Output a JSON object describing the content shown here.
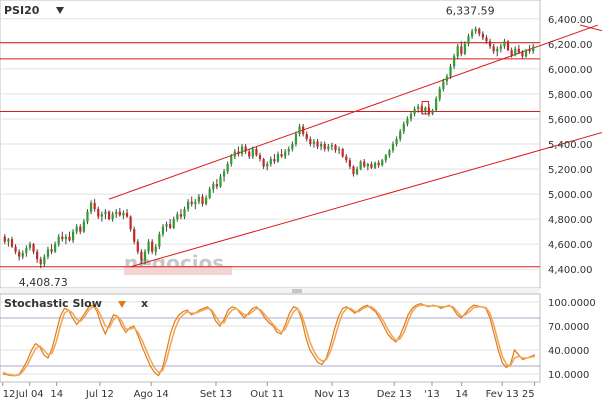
{
  "colors": {
    "up_candle": "#2e9e2e",
    "down_candle": "#c62828",
    "wick": "#444444",
    "trendline": "#d91c1c",
    "stoch_k": "#e07a18",
    "stoch_d": "#f2a85a",
    "grid": "#e2e2e2",
    "hline_stoch": "#a8a8c8"
  },
  "header": {
    "symbol": "PSI20",
    "symbol_dropdown_icon": "triangle-down-icon",
    "indicator": "Stochastic Slow",
    "indicator_dropdown_icon": "triangle-down-icon",
    "indicator_close": "x"
  },
  "watermark": {
    "text": "negocios",
    "subtext": "negocios"
  },
  "chart_data": [
    {
      "type": "candlestick",
      "title": "PSI20",
      "ylim": [
        4250,
        6550
      ],
      "y_ticks": [
        "6,400.00",
        "6,200.00",
        "6,000.00",
        "5,800.00",
        "5,600.00",
        "5,400.00",
        "5,200.00",
        "5,000.00",
        "4,800.00",
        "4,600.00",
        "4,400.00"
      ],
      "x_ticks": [
        "12",
        "Jul 04",
        "14",
        "Jul 12",
        "Ago 14",
        "Set 13",
        "Out 11",
        "Nov 13",
        "Dez 13",
        "'13",
        "14",
        "Fev 13",
        "25"
      ],
      "annotations": {
        "high_label": "6,337.59",
        "high_value": 6337.59,
        "low_label": "4,408.73",
        "low_value": 4408.73
      },
      "horizontal_lines": [
        6210,
        6080,
        5660,
        4420
      ],
      "trend_lines": [
        {
          "from": [
            29,
            4960
          ],
          "to": [
            165,
            6350
          ]
        },
        {
          "from": [
            35,
            4420
          ],
          "to": [
            199,
            5760
          ]
        },
        {
          "from": [
            160,
            6350
          ],
          "to": [
            199,
            6060
          ]
        },
        {
          "from": [
            172,
            6060
          ],
          "to": [
            199,
            6020
          ]
        }
      ],
      "candles": [
        [
          4660,
          4680,
          4600,
          4620
        ],
        [
          4620,
          4650,
          4580,
          4640
        ],
        [
          4640,
          4660,
          4570,
          4580
        ],
        [
          4580,
          4600,
          4520,
          4540
        ],
        [
          4540,
          4560,
          4470,
          4500
        ],
        [
          4500,
          4550,
          4480,
          4530
        ],
        [
          4530,
          4590,
          4500,
          4570
        ],
        [
          4570,
          4620,
          4550,
          4600
        ],
        [
          4600,
          4610,
          4520,
          4540
        ],
        [
          4540,
          4560,
          4450,
          4480
        ],
        [
          4480,
          4500,
          4409,
          4440
        ],
        [
          4440,
          4520,
          4420,
          4500
        ],
        [
          4500,
          4580,
          4480,
          4560
        ],
        [
          4560,
          4600,
          4520,
          4540
        ],
        [
          4540,
          4620,
          4530,
          4600
        ],
        [
          4600,
          4680,
          4580,
          4660
        ],
        [
          4660,
          4700,
          4620,
          4640
        ],
        [
          4640,
          4680,
          4600,
          4660
        ],
        [
          4660,
          4700,
          4620,
          4630
        ],
        [
          4630,
          4720,
          4610,
          4700
        ],
        [
          4700,
          4760,
          4680,
          4740
        ],
        [
          4740,
          4760,
          4680,
          4700
        ],
        [
          4700,
          4800,
          4690,
          4780
        ],
        [
          4780,
          4880,
          4760,
          4860
        ],
        [
          4860,
          4950,
          4840,
          4930
        ],
        [
          4930,
          4960,
          4860,
          4880
        ],
        [
          4880,
          4900,
          4800,
          4820
        ],
        [
          4820,
          4860,
          4780,
          4840
        ],
        [
          4840,
          4880,
          4800,
          4860
        ],
        [
          4860,
          4870,
          4790,
          4800
        ],
        [
          4800,
          4860,
          4780,
          4840
        ],
        [
          4840,
          4880,
          4810,
          4860
        ],
        [
          4860,
          4890,
          4820,
          4830
        ],
        [
          4830,
          4870,
          4800,
          4850
        ],
        [
          4850,
          4880,
          4810,
          4820
        ],
        [
          4820,
          4830,
          4700,
          4720
        ],
        [
          4720,
          4740,
          4600,
          4620
        ],
        [
          4620,
          4640,
          4520,
          4540
        ],
        [
          4540,
          4560,
          4440,
          4470
        ],
        [
          4470,
          4560,
          4440,
          4540
        ],
        [
          4540,
          4640,
          4520,
          4620
        ],
        [
          4620,
          4640,
          4520,
          4540
        ],
        [
          4540,
          4600,
          4510,
          4580
        ],
        [
          4580,
          4700,
          4560,
          4680
        ],
        [
          4680,
          4760,
          4660,
          4740
        ],
        [
          4740,
          4780,
          4700,
          4760
        ],
        [
          4760,
          4800,
          4720,
          4730
        ],
        [
          4730,
          4820,
          4720,
          4800
        ],
        [
          4800,
          4860,
          4780,
          4840
        ],
        [
          4840,
          4880,
          4800,
          4820
        ],
        [
          4820,
          4900,
          4800,
          4880
        ],
        [
          4880,
          4960,
          4860,
          4940
        ],
        [
          4940,
          4980,
          4900,
          4920
        ],
        [
          4920,
          4960,
          4880,
          4940
        ],
        [
          4940,
          5000,
          4920,
          4980
        ],
        [
          4980,
          5000,
          4900,
          4920
        ],
        [
          4920,
          4990,
          4910,
          4970
        ],
        [
          4970,
          5060,
          4960,
          5040
        ],
        [
          5040,
          5100,
          5010,
          5080
        ],
        [
          5080,
          5120,
          5040,
          5060
        ],
        [
          5060,
          5160,
          5050,
          5140
        ],
        [
          5140,
          5200,
          5100,
          5180
        ],
        [
          5180,
          5260,
          5160,
          5240
        ],
        [
          5240,
          5320,
          5220,
          5300
        ],
        [
          5300,
          5360,
          5280,
          5340
        ],
        [
          5340,
          5380,
          5300,
          5320
        ],
        [
          5320,
          5400,
          5300,
          5380
        ],
        [
          5380,
          5400,
          5320,
          5340
        ],
        [
          5340,
          5360,
          5280,
          5300
        ],
        [
          5300,
          5380,
          5280,
          5360
        ],
        [
          5360,
          5380,
          5300,
          5310
        ],
        [
          5310,
          5330,
          5260,
          5280
        ],
        [
          5280,
          5290,
          5200,
          5220
        ],
        [
          5220,
          5260,
          5190,
          5240
        ],
        [
          5240,
          5300,
          5220,
          5280
        ],
        [
          5280,
          5320,
          5240,
          5260
        ],
        [
          5260,
          5340,
          5250,
          5320
        ],
        [
          5320,
          5360,
          5290,
          5300
        ],
        [
          5300,
          5360,
          5280,
          5340
        ],
        [
          5340,
          5380,
          5310,
          5360
        ],
        [
          5360,
          5420,
          5340,
          5400
        ],
        [
          5400,
          5500,
          5380,
          5480
        ],
        [
          5480,
          5560,
          5460,
          5540
        ],
        [
          5540,
          5560,
          5460,
          5480
        ],
        [
          5480,
          5500,
          5420,
          5440
        ],
        [
          5440,
          5460,
          5380,
          5400
        ],
        [
          5400,
          5440,
          5370,
          5420
        ],
        [
          5420,
          5440,
          5360,
          5380
        ],
        [
          5380,
          5420,
          5350,
          5400
        ],
        [
          5400,
          5420,
          5340,
          5360
        ],
        [
          5360,
          5400,
          5340,
          5380
        ],
        [
          5380,
          5410,
          5350,
          5390
        ],
        [
          5390,
          5400,
          5330,
          5350
        ],
        [
          5350,
          5380,
          5320,
          5360
        ],
        [
          5360,
          5370,
          5290,
          5300
        ],
        [
          5300,
          5320,
          5250,
          5270
        ],
        [
          5270,
          5290,
          5200,
          5220
        ],
        [
          5220,
          5230,
          5140,
          5160
        ],
        [
          5160,
          5220,
          5150,
          5200
        ],
        [
          5200,
          5270,
          5190,
          5260
        ],
        [
          5260,
          5280,
          5210,
          5220
        ],
        [
          5220,
          5250,
          5190,
          5240
        ],
        [
          5240,
          5260,
          5200,
          5210
        ],
        [
          5210,
          5260,
          5200,
          5250
        ],
        [
          5250,
          5270,
          5210,
          5230
        ],
        [
          5230,
          5280,
          5220,
          5270
        ],
        [
          5270,
          5320,
          5250,
          5310
        ],
        [
          5310,
          5360,
          5290,
          5350
        ],
        [
          5350,
          5420,
          5330,
          5400
        ],
        [
          5400,
          5460,
          5380,
          5440
        ],
        [
          5440,
          5520,
          5420,
          5500
        ],
        [
          5500,
          5580,
          5480,
          5560
        ],
        [
          5560,
          5620,
          5540,
          5600
        ],
        [
          5600,
          5660,
          5580,
          5640
        ],
        [
          5640,
          5700,
          5620,
          5680
        ],
        [
          5680,
          5720,
          5650,
          5700
        ],
        [
          5700,
          5720,
          5640,
          5660
        ],
        [
          5660,
          5700,
          5640,
          5690
        ],
        [
          5690,
          5720,
          5620,
          5640
        ],
        [
          5640,
          5680,
          5630,
          5670
        ],
        [
          5670,
          5780,
          5660,
          5760
        ],
        [
          5760,
          5860,
          5740,
          5840
        ],
        [
          5840,
          5920,
          5820,
          5900
        ],
        [
          5900,
          5960,
          5870,
          5940
        ],
        [
          5940,
          6040,
          5920,
          6020
        ],
        [
          6020,
          6120,
          6000,
          6100
        ],
        [
          6100,
          6200,
          6080,
          6180
        ],
        [
          6180,
          6220,
          6100,
          6120
        ],
        [
          6120,
          6220,
          6110,
          6200
        ],
        [
          6200,
          6280,
          6180,
          6260
        ],
        [
          6260,
          6320,
          6240,
          6300
        ],
        [
          6300,
          6338,
          6280,
          6320
        ],
        [
          6320,
          6330,
          6260,
          6280
        ],
        [
          6280,
          6300,
          6230,
          6250
        ],
        [
          6250,
          6270,
          6200,
          6220
        ],
        [
          6220,
          6240,
          6160,
          6180
        ],
        [
          6180,
          6200,
          6120,
          6140
        ],
        [
          6140,
          6180,
          6100,
          6160
        ],
        [
          6160,
          6200,
          6130,
          6180
        ],
        [
          6180,
          6240,
          6160,
          6220
        ],
        [
          6220,
          6230,
          6140,
          6150
        ],
        [
          6150,
          6170,
          6090,
          6110
        ],
        [
          6110,
          6180,
          6100,
          6160
        ],
        [
          6160,
          6190,
          6120,
          6130
        ],
        [
          6130,
          6150,
          6080,
          6100
        ],
        [
          6100,
          6160,
          6090,
          6150
        ],
        [
          6150,
          6190,
          6120,
          6140
        ],
        [
          6140,
          6200,
          6120,
          6180
        ]
      ],
      "highlight_box": {
        "index": 117,
        "low": 5640,
        "high": 5740
      }
    },
    {
      "type": "line",
      "title": "Stochastic Slow",
      "ylim": [
        0,
        110
      ],
      "y_ticks": [
        "100.0000",
        "70.0000",
        "40.0000",
        "10.0000"
      ],
      "hlines": [
        80,
        20
      ],
      "series": [
        {
          "values": [
            10,
            9,
            8,
            8,
            10,
            18,
            28,
            40,
            48,
            44,
            34,
            30,
            42,
            62,
            82,
            92,
            90,
            80,
            72,
            78,
            86,
            94,
            96,
            88,
            72,
            60,
            72,
            84,
            82,
            70,
            62,
            68,
            70,
            58,
            44,
            32,
            20,
            12,
            8,
            18,
            40,
            62,
            76,
            84,
            88,
            90,
            84,
            86,
            90,
            92,
            94,
            88,
            76,
            70,
            78,
            90,
            94,
            92,
            86,
            80,
            86,
            92,
            94,
            88,
            80,
            74,
            70,
            62,
            60,
            72,
            86,
            94,
            92,
            78,
            56,
            40,
            32,
            24,
            22,
            30,
            46,
            66,
            82,
            92,
            94,
            90,
            86,
            90,
            94,
            96,
            92,
            88,
            80,
            70,
            60,
            54,
            50,
            58,
            70,
            84,
            92,
            96,
            98,
            96,
            94,
            96,
            95,
            92,
            94,
            96,
            92,
            84,
            80,
            86,
            92,
            96,
            95,
            94,
            92,
            80,
            60,
            40,
            24,
            18,
            22,
            40,
            34,
            28,
            30,
            32,
            34
          ]
        },
        {
          "values": [
            12,
            10,
            9,
            8,
            9,
            14,
            22,
            32,
            42,
            45,
            40,
            34,
            36,
            50,
            70,
            86,
            90,
            86,
            78,
            76,
            82,
            90,
            94,
            92,
            82,
            70,
            68,
            78,
            82,
            76,
            66,
            66,
            68,
            62,
            52,
            40,
            28,
            18,
            12,
            14,
            28,
            48,
            66,
            78,
            84,
            88,
            86,
            86,
            88,
            90,
            92,
            90,
            82,
            74,
            74,
            84,
            90,
            92,
            88,
            84,
            84,
            88,
            92,
            90,
            84,
            78,
            72,
            66,
            62,
            66,
            78,
            88,
            92,
            84,
            68,
            50,
            38,
            30,
            26,
            28,
            38,
            54,
            72,
            86,
            92,
            92,
            88,
            88,
            92,
            94,
            94,
            90,
            84,
            76,
            66,
            58,
            52,
            54,
            62,
            76,
            88,
            94,
            96,
            96,
            95,
            95,
            95,
            94,
            94,
            95,
            94,
            88,
            82,
            84,
            88,
            93,
            94,
            94,
            93,
            86,
            70,
            50,
            32,
            22,
            20,
            30,
            32,
            30,
            30,
            31,
            32
          ]
        }
      ]
    }
  ]
}
